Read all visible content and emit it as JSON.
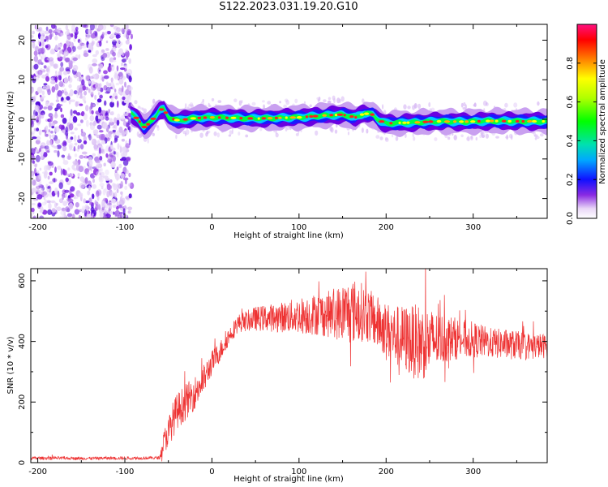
{
  "title": "S122.2023.031.19.20.G10",
  "chart_data": [
    {
      "type": "heatmap",
      "xlabel": "Height of straight line (km)",
      "ylabel": "Frequency (Hz)",
      "xlim": [
        -208,
        385
      ],
      "ylim": [
        -25,
        24
      ],
      "xticks": [
        -200,
        -100,
        0,
        100,
        200,
        300
      ],
      "yticks": [
        -20,
        -10,
        0,
        10,
        20
      ],
      "noise_region_x": [
        -208,
        -92
      ],
      "ridge": {
        "x": [
          -93,
          -85,
          -78,
          -72,
          -66,
          -60,
          -55,
          -50,
          -44,
          -38,
          -30,
          -20,
          0,
          50,
          100,
          130,
          150,
          165,
          175,
          185,
          192,
          200,
          230,
          260,
          290,
          320,
          350,
          385
        ],
        "y": [
          1.5,
          0,
          -2,
          -1,
          0.5,
          2.5,
          2.5,
          0.5,
          0,
          -0.3,
          0,
          0.3,
          0.5,
          0.2,
          0.5,
          1,
          1.2,
          0.5,
          1.5,
          1.2,
          -0.3,
          -1,
          -0.8,
          -0.5,
          -0.6,
          -0.4,
          -0.5,
          -0.5
        ]
      },
      "colorbar": {
        "label": "Normalized spectral amplitude",
        "range": [
          0,
          1
        ],
        "ticks": [
          0.0,
          0.2,
          0.4,
          0.6,
          0.8
        ],
        "tick_labels": [
          "0.0",
          "0.2",
          "0.4",
          "0.6",
          "0.8"
        ]
      }
    },
    {
      "type": "line",
      "xlabel": "Height of straight line (km)",
      "ylabel": "SNR (10 * v/v)",
      "xlim": [
        -208,
        385
      ],
      "ylim": [
        0,
        640
      ],
      "xticks": [
        -200,
        -100,
        0,
        100,
        200,
        300
      ],
      "yticks": [
        0,
        200,
        400,
        600
      ],
      "color": "#ee3333",
      "series": [
        {
          "x": [
            -208,
            -180,
            -150,
            -120,
            -90,
            -60,
            -55,
            -50,
            -45,
            -40,
            -30,
            -20,
            -10,
            0,
            10,
            20,
            30,
            50,
            80,
            100,
            120,
            140,
            150,
            160,
            170,
            180,
            190,
            200,
            210,
            220,
            230,
            240,
            250,
            260,
            270,
            280,
            300,
            320,
            340,
            360,
            385
          ],
          "values": [
            15,
            15,
            14,
            15,
            15,
            16,
            70,
            100,
            140,
            170,
            200,
            230,
            270,
            330,
            370,
            420,
            460,
            475,
            480,
            485,
            490,
            490,
            495,
            500,
            500,
            485,
            460,
            440,
            420,
            410,
            400,
            395,
            400,
            405,
            410,
            410,
            405,
            395,
            390,
            385,
            385
          ],
          "spread": [
            5,
            5,
            5,
            5,
            5,
            5,
            40,
            50,
            60,
            60,
            60,
            55,
            50,
            40,
            35,
            30,
            30,
            40,
            50,
            60,
            70,
            80,
            100,
            110,
            100,
            90,
            90,
            90,
            100,
            110,
            120,
            130,
            110,
            90,
            80,
            70,
            60,
            50,
            50,
            45,
            40
          ]
        }
      ]
    }
  ]
}
